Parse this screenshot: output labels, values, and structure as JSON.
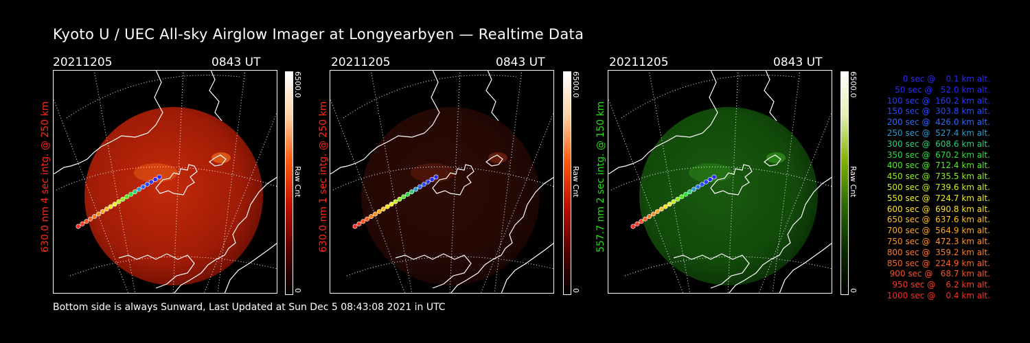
{
  "title": "Kyoto U / UEC All-sky Airglow Imager at Longyearbyen — Realtime Data",
  "footer": "Bottom side is always Sunward, Last Updated at Sun Dec  5 08:43:08 2021 in UTC",
  "colors": {
    "red_label": "#ff2a1a",
    "green_label": "#22e016"
  },
  "panels": [
    {
      "date": "20211205",
      "time": "0843 UT",
      "side_label": "630.0 nm 4 sec intg. @ 250 km",
      "cbar_max": "6500.0",
      "cbar_min": "0",
      "cbar_name": "Raw Cnt",
      "tint": "red-bright"
    },
    {
      "date": "20211205",
      "time": "0843 UT",
      "side_label": "630.0 nm 1 sec intg. @ 250 km",
      "cbar_max": "6500.0",
      "cbar_min": "0",
      "cbar_name": "Raw Cnt",
      "tint": "red-dim"
    },
    {
      "date": "20211205",
      "time": "0843 UT",
      "side_label": "557.7 nm 2 sec intg. @ 150 km",
      "cbar_max": "6500.0",
      "cbar_min": "0",
      "cbar_name": "Raw Cnt",
      "tint": "green"
    }
  ],
  "legend": [
    {
      "text": "0 sec @    0.1 km alt.",
      "color": "#2a2aff"
    },
    {
      "text": "50 sec @   52.0 km alt.",
      "color": "#2a2aff"
    },
    {
      "text": "100 sec @  160.2 km alt.",
      "color": "#2a3cff"
    },
    {
      "text": "150 sec @  303.8 km alt.",
      "color": "#2a4cff"
    },
    {
      "text": "200 sec @  426.0 km alt.",
      "color": "#2a6cff"
    },
    {
      "text": "250 sec @  527.4 km alt.",
      "color": "#2a9ad0"
    },
    {
      "text": "300 sec @  608.6 km alt.",
      "color": "#2ad07a"
    },
    {
      "text": "350 sec @  670.2 km alt.",
      "color": "#2ae040"
    },
    {
      "text": "400 sec @  712.4 km alt.",
      "color": "#50ee20"
    },
    {
      "text": "450 sec @  735.5 km alt.",
      "color": "#8ef020"
    },
    {
      "text": "500 sec @  739.6 km alt.",
      "color": "#c6f020"
    },
    {
      "text": "550 sec @  724.7 km alt.",
      "color": "#f0f020"
    },
    {
      "text": "600 sec @  690.8 km alt.",
      "color": "#ffe020"
    },
    {
      "text": "650 sec @  637.6 km alt.",
      "color": "#ffc020"
    },
    {
      "text": "700 sec @  564.9 km alt.",
      "color": "#ffa820"
    },
    {
      "text": "750 sec @  472.3 km alt.",
      "color": "#ff9020"
    },
    {
      "text": "800 sec @  359.2 km alt.",
      "color": "#ff7a20"
    },
    {
      "text": "850 sec @  224.9 km alt.",
      "color": "#ff6420"
    },
    {
      "text": "900 sec @   68.7 km alt.",
      "color": "#ff5020"
    },
    {
      "text": "950 sec @    6.2 km alt.",
      "color": "#ff3c20"
    },
    {
      "text": "1000 sec @    0.4 km alt.",
      "color": "#ff2a20"
    }
  ]
}
